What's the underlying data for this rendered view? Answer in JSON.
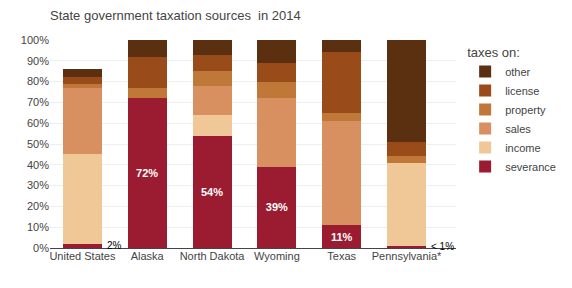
{
  "chart_data": {
    "type": "bar",
    "stacked": true,
    "title": "State government taxation sources  in 2014",
    "legend_title": "taxes on:",
    "categories": [
      "United States",
      "Alaska",
      "North Dakota",
      "Wyoming",
      "Texas",
      "Pennsylvania*"
    ],
    "series": [
      {
        "name": "severance",
        "color": "#9B1B30",
        "values": [
          2,
          72,
          54,
          39,
          11,
          1
        ],
        "value_labels": [
          "2%",
          "72%",
          "54%",
          "39%",
          "11%",
          "< 1%"
        ]
      },
      {
        "name": "income",
        "color": "#F0C898",
        "values": [
          43,
          0,
          10,
          0,
          0,
          40
        ]
      },
      {
        "name": "sales",
        "color": "#D99060",
        "values": [
          32,
          0,
          14,
          33,
          50,
          0
        ]
      },
      {
        "name": "property",
        "color": "#C07838",
        "values": [
          2,
          5,
          7,
          8,
          4,
          3
        ]
      },
      {
        "name": "license",
        "color": "#994C1A",
        "values": [
          3,
          15,
          8,
          9,
          29,
          7
        ]
      },
      {
        "name": "other",
        "color": "#5A3010",
        "values": [
          4,
          8,
          7,
          11,
          6,
          49
        ]
      }
    ],
    "data_labels": true,
    "ylim": [
      0,
      100
    ],
    "yticks": [
      {
        "value": 0,
        "label": "0%"
      },
      {
        "value": 10,
        "label": "10%"
      },
      {
        "value": 20,
        "label": "20%"
      },
      {
        "value": 30,
        "label": "30%"
      },
      {
        "value": 40,
        "label": "40%"
      },
      {
        "value": 50,
        "label": "50%"
      },
      {
        "value": 60,
        "label": "60%"
      },
      {
        "value": 70,
        "label": "70%"
      },
      {
        "value": 80,
        "label": "80%"
      },
      {
        "value": 90,
        "label": "90%"
      },
      {
        "value": 100,
        "label": "100%"
      }
    ],
    "grid": true,
    "legend": "right"
  }
}
